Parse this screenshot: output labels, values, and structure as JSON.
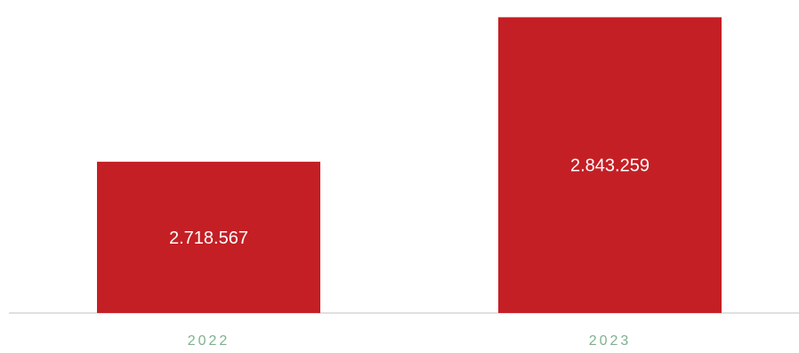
{
  "chart_data": {
    "type": "bar",
    "categories": [
      "2022",
      "2023"
    ],
    "values": [
      2718567,
      2843259
    ],
    "value_labels": [
      "2.718.567",
      "2.843.259"
    ],
    "ylim": [
      2588000,
      2852000
    ],
    "grid": false,
    "legend": "none"
  },
  "colors": {
    "bar": "#c41f25",
    "bar_label": "#ffffff",
    "tick_label": "#7fb08f",
    "axis": "#d6d6d6"
  }
}
